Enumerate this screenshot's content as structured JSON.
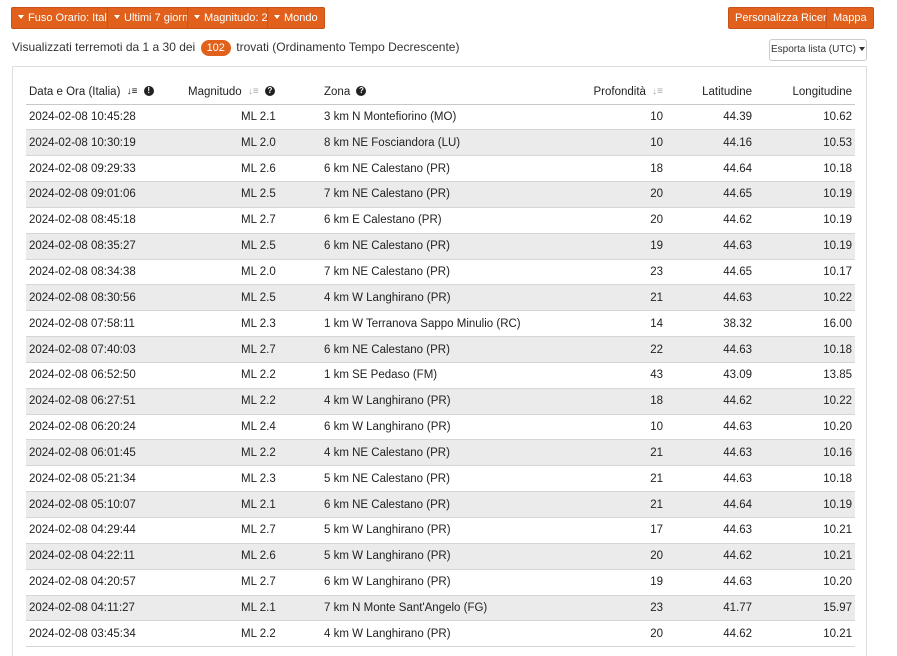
{
  "toolbar": {
    "timezone_label": "Fuso Orario: Italia",
    "period_label": "Ultimi 7 giorni",
    "magnitude_label": "Magnitudo: 2+",
    "region_label": "Mondo",
    "customize_label": "Personalizza Ricerca",
    "map_label": "Mappa"
  },
  "summary": {
    "prefix": "Visualizzati terremoti da 1 a 30 dei",
    "count": "102",
    "suffix": "trovati (Ordinamento Tempo Decrescente)"
  },
  "export": {
    "label": "Esporta lista (UTC)"
  },
  "table": {
    "headers": {
      "date": "Data e Ora (Italia)",
      "magnitude": "Magnitudo",
      "zone": "Zona",
      "depth": "Profondità",
      "lat": "Latitudine",
      "lon": "Longitudine"
    },
    "rows": [
      {
        "date": "2024-02-08 10:45:28",
        "mag": "ML 2.1",
        "zone": "3 km N Montefiorino (MO)",
        "depth": "10",
        "lat": "44.39",
        "lon": "10.62"
      },
      {
        "date": "2024-02-08 10:30:19",
        "mag": "ML 2.0",
        "zone": "8 km NE Fosciandora (LU)",
        "depth": "10",
        "lat": "44.16",
        "lon": "10.53"
      },
      {
        "date": "2024-02-08 09:29:33",
        "mag": "ML 2.6",
        "zone": "6 km NE Calestano (PR)",
        "depth": "18",
        "lat": "44.64",
        "lon": "10.18"
      },
      {
        "date": "2024-02-08 09:01:06",
        "mag": "ML 2.5",
        "zone": "7 km NE Calestano (PR)",
        "depth": "20",
        "lat": "44.65",
        "lon": "10.19"
      },
      {
        "date": "2024-02-08 08:45:18",
        "mag": "ML 2.7",
        "zone": "6 km E Calestano (PR)",
        "depth": "20",
        "lat": "44.62",
        "lon": "10.19"
      },
      {
        "date": "2024-02-08 08:35:27",
        "mag": "ML 2.5",
        "zone": "6 km NE Calestano (PR)",
        "depth": "19",
        "lat": "44.63",
        "lon": "10.19"
      },
      {
        "date": "2024-02-08 08:34:38",
        "mag": "ML 2.0",
        "zone": "7 km NE Calestano (PR)",
        "depth": "23",
        "lat": "44.65",
        "lon": "10.17"
      },
      {
        "date": "2024-02-08 08:30:56",
        "mag": "ML 2.5",
        "zone": "4 km W Langhirano (PR)",
        "depth": "21",
        "lat": "44.63",
        "lon": "10.22"
      },
      {
        "date": "2024-02-08 07:58:11",
        "mag": "ML 2.3",
        "zone": "1 km W Terranova Sappo Minulio (RC)",
        "depth": "14",
        "lat": "38.32",
        "lon": "16.00"
      },
      {
        "date": "2024-02-08 07:40:03",
        "mag": "ML 2.7",
        "zone": "6 km NE Calestano (PR)",
        "depth": "22",
        "lat": "44.63",
        "lon": "10.18"
      },
      {
        "date": "2024-02-08 06:52:50",
        "mag": "ML 2.2",
        "zone": "1 km SE Pedaso (FM)",
        "depth": "43",
        "lat": "43.09",
        "lon": "13.85"
      },
      {
        "date": "2024-02-08 06:27:51",
        "mag": "ML 2.2",
        "zone": "4 km W Langhirano (PR)",
        "depth": "18",
        "lat": "44.62",
        "lon": "10.22"
      },
      {
        "date": "2024-02-08 06:20:24",
        "mag": "ML 2.4",
        "zone": "6 km W Langhirano (PR)",
        "depth": "10",
        "lat": "44.63",
        "lon": "10.20"
      },
      {
        "date": "2024-02-08 06:01:45",
        "mag": "ML 2.2",
        "zone": "4 km NE Calestano (PR)",
        "depth": "21",
        "lat": "44.63",
        "lon": "10.16"
      },
      {
        "date": "2024-02-08 05:21:34",
        "mag": "ML 2.3",
        "zone": "5 km NE Calestano (PR)",
        "depth": "21",
        "lat": "44.63",
        "lon": "10.18"
      },
      {
        "date": "2024-02-08 05:10:07",
        "mag": "ML 2.1",
        "zone": "6 km NE Calestano (PR)",
        "depth": "21",
        "lat": "44.64",
        "lon": "10.19"
      },
      {
        "date": "2024-02-08 04:29:44",
        "mag": "ML 2.7",
        "zone": "5 km W Langhirano (PR)",
        "depth": "17",
        "lat": "44.63",
        "lon": "10.21"
      },
      {
        "date": "2024-02-08 04:22:11",
        "mag": "ML 2.6",
        "zone": "5 km W Langhirano (PR)",
        "depth": "20",
        "lat": "44.62",
        "lon": "10.21"
      },
      {
        "date": "2024-02-08 04:20:57",
        "mag": "ML 2.7",
        "zone": "6 km W Langhirano (PR)",
        "depth": "19",
        "lat": "44.63",
        "lon": "10.20"
      },
      {
        "date": "2024-02-08 04:11:27",
        "mag": "ML 2.1",
        "zone": "7 km N Monte Sant'Angelo (FG)",
        "depth": "23",
        "lat": "41.77",
        "lon": "15.97"
      },
      {
        "date": "2024-02-08 03:45:34",
        "mag": "ML 2.2",
        "zone": "4 km W Langhirano (PR)",
        "depth": "20",
        "lat": "44.62",
        "lon": "10.21"
      }
    ]
  },
  "icons": {
    "sort_desc": "sort-descending-icon",
    "sort_neutral": "sort-neutral-icon",
    "info": "info-icon",
    "question": "question-icon",
    "caret": "caret-down-icon"
  },
  "colors": {
    "accent": "#e0601c",
    "row_alt": "#ebebeb"
  }
}
